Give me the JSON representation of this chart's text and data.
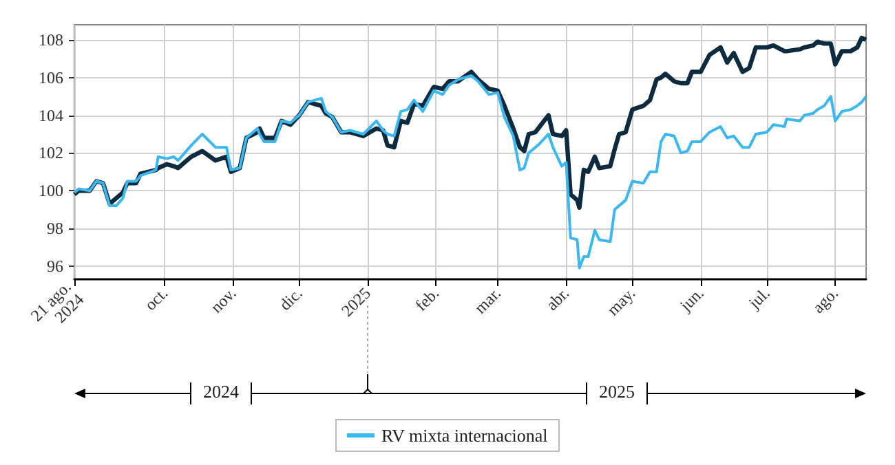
{
  "chart_data": {
    "type": "line",
    "x": [
      "2024-08-21",
      "2024-08-23",
      "2024-08-28",
      "2024-08-31",
      "2024-09-03",
      "2024-09-06",
      "2024-09-09",
      "2024-09-12",
      "2024-09-14",
      "2024-09-18",
      "2024-09-20",
      "2024-09-27",
      "2024-09-28",
      "2024-10-02",
      "2024-10-05",
      "2024-10-07",
      "2024-10-13",
      "2024-10-18",
      "2024-10-24",
      "2024-10-29",
      "2024-10-31",
      "2024-11-04",
      "2024-11-07",
      "2024-11-12",
      "2024-11-13",
      "2024-11-15",
      "2024-11-20",
      "2024-11-23",
      "2024-11-27",
      "2024-12-01",
      "2024-12-05",
      "2024-12-11",
      "2024-12-13",
      "2024-12-16",
      "2024-12-20",
      "2024-12-24",
      "2024-12-30",
      "2025-01-05",
      "2025-01-08",
      "2025-01-10",
      "2025-01-13",
      "2025-01-16",
      "2025-01-19",
      "2025-01-22",
      "2025-01-26",
      "2025-01-31",
      "2025-02-04",
      "2025-02-07",
      "2025-02-11",
      "2025-02-17",
      "2025-02-20",
      "2025-02-25",
      "2025-03-01",
      "2025-03-04",
      "2025-03-08",
      "2025-03-11",
      "2025-03-13",
      "2025-03-15",
      "2025-03-18",
      "2025-03-20",
      "2025-03-24",
      "2025-03-26",
      "2025-03-30",
      "2025-04-01",
      "2025-04-03",
      "2025-04-06",
      "2025-04-07",
      "2025-04-09",
      "2025-04-11",
      "2025-04-14",
      "2025-04-16",
      "2025-04-21",
      "2025-04-23",
      "2025-04-25",
      "2025-04-28",
      "2025-05-01",
      "2025-05-06",
      "2025-05-09",
      "2025-05-12",
      "2025-05-14",
      "2025-05-16",
      "2025-05-20",
      "2025-05-23",
      "2025-05-26",
      "2025-05-28",
      "2025-06-01",
      "2025-06-05",
      "2025-06-10",
      "2025-06-13",
      "2025-06-16",
      "2025-06-20",
      "2025-06-23",
      "2025-06-26",
      "2025-07-01",
      "2025-07-04",
      "2025-07-09",
      "2025-07-10",
      "2025-07-16",
      "2025-07-18",
      "2025-07-22",
      "2025-07-24",
      "2025-07-27",
      "2025-07-30",
      "2025-08-01",
      "2025-08-04",
      "2025-08-08",
      "2025-08-11",
      "2025-08-13",
      "2025-08-15"
    ],
    "series": [
      {
        "color": "#0d2b3e",
        "values": [
          99.8,
          100.0,
          100.0,
          100.5,
          100.4,
          99.3,
          99.6,
          99.9,
          100.4,
          100.4,
          100.9,
          101.1,
          101.2,
          101.4,
          101.3,
          101.2,
          101.8,
          102.1,
          101.6,
          101.8,
          101.0,
          101.2,
          102.8,
          103.1,
          103.3,
          102.8,
          102.8,
          103.7,
          103.5,
          104.0,
          104.7,
          104.5,
          104.1,
          103.9,
          103.1,
          103.1,
          102.9,
          103.3,
          103.2,
          102.4,
          102.3,
          103.7,
          103.6,
          104.6,
          104.5,
          105.5,
          105.4,
          105.8,
          105.8,
          106.3,
          105.9,
          105.4,
          105.3,
          104.5,
          103.3,
          102.3,
          102.1,
          103.0,
          103.1,
          103.4,
          104.0,
          103.0,
          102.9,
          103.2,
          99.8,
          99.5,
          99.1,
          101.1,
          101.0,
          101.8,
          101.2,
          101.3,
          102.2,
          103.0,
          103.1,
          104.3,
          104.5,
          104.8,
          105.9,
          106.0,
          106.2,
          105.8,
          105.7,
          105.7,
          106.3,
          106.3,
          107.2,
          107.6,
          106.8,
          107.3,
          106.3,
          106.5,
          107.6,
          107.6,
          107.7,
          107.4,
          107.4,
          107.5,
          107.6,
          107.7,
          107.9,
          107.8,
          107.8,
          106.7,
          107.4,
          107.4,
          107.6,
          108.1,
          108.0
        ]
      },
      {
        "name": "RV mixta internacional",
        "color": "#3bb8f0",
        "values": [
          99.9,
          100.1,
          100.0,
          100.5,
          100.4,
          99.2,
          99.2,
          99.6,
          100.5,
          100.5,
          100.8,
          101.1,
          101.8,
          101.7,
          101.8,
          101.6,
          102.4,
          103.0,
          102.3,
          102.3,
          101.1,
          101.2,
          102.8,
          103.3,
          103.0,
          102.6,
          102.6,
          103.7,
          103.6,
          104.0,
          104.7,
          104.9,
          104.2,
          103.9,
          103.1,
          103.2,
          103.0,
          103.7,
          103.2,
          103.0,
          102.9,
          104.2,
          104.3,
          104.8,
          104.2,
          105.3,
          105.1,
          105.6,
          105.9,
          106.1,
          105.8,
          105.1,
          105.2,
          103.9,
          102.9,
          101.1,
          101.2,
          102.0,
          102.3,
          102.5,
          103.0,
          102.3,
          101.3,
          101.5,
          97.5,
          97.4,
          95.9,
          96.5,
          96.5,
          97.9,
          97.4,
          97.3,
          99.0,
          99.2,
          99.5,
          100.5,
          100.4,
          101.0,
          101.0,
          102.6,
          103.0,
          102.9,
          102.0,
          102.1,
          102.6,
          102.6,
          103.1,
          103.4,
          102.8,
          102.9,
          102.3,
          102.3,
          103.0,
          103.1,
          103.5,
          103.4,
          103.8,
          103.7,
          104.0,
          104.1,
          104.3,
          104.5,
          105.0,
          103.7,
          104.2,
          104.3,
          104.5,
          104.7,
          105.0
        ]
      }
    ],
    "xlim": [
      "2024-08-21",
      "2025-08-15"
    ],
    "xticks": [
      {
        "value": "2024-08-21",
        "label": "21 ago.\n2024"
      },
      {
        "value": "2024-10-01",
        "label": "oct."
      },
      {
        "value": "2024-11-01",
        "label": "nov."
      },
      {
        "value": "2024-12-01",
        "label": "dic."
      },
      {
        "value": "2025-01-01",
        "label": "2025"
      },
      {
        "value": "2025-02-01",
        "label": "feb."
      },
      {
        "value": "2025-03-01",
        "label": "mar."
      },
      {
        "value": "2025-04-01",
        "label": "abr."
      },
      {
        "value": "2025-05-01",
        "label": "may."
      },
      {
        "value": "2025-06-01",
        "label": "jun."
      },
      {
        "value": "2025-07-01",
        "label": "jul."
      },
      {
        "value": "2025-08-01",
        "label": "ago."
      }
    ],
    "ylim": [
      95.3,
      108.8
    ],
    "yticks": [
      96,
      98,
      100,
      102,
      104,
      106,
      108
    ],
    "grid": true,
    "legend": "bottom",
    "marker": "none",
    "line_style": "solid",
    "annotations": [
      "2024",
      "2025"
    ]
  }
}
